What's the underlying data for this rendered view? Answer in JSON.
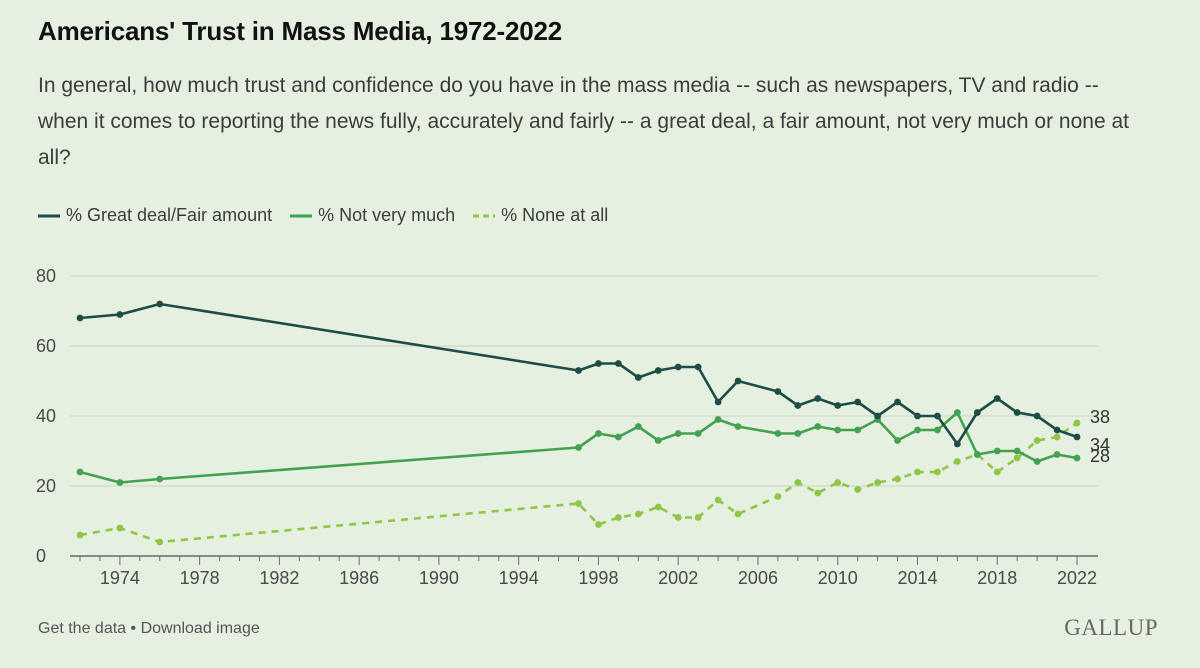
{
  "title": "Americans' Trust in Mass Media, 1972-2022",
  "subtitle": "In general, how much trust and confidence do you have in the mass media -- such as newspapers, TV and radio -- when it comes to reporting the news fully, accurately and fairly -- a great deal, a fair amount, not very much or none at all?",
  "footer": {
    "get_data": "Get the data",
    "separator": " • ",
    "download": "Download image"
  },
  "brand": "GALLUP",
  "colors": {
    "great": "#1e4d47",
    "notvery": "#44a152",
    "none": "#8ec645",
    "grid": "#c9d3c4",
    "axis": "#6b6b6b"
  },
  "chart_data": {
    "type": "line",
    "title": "Americans' Trust in Mass Media, 1972-2022",
    "xlim": [
      1972,
      2022
    ],
    "ylim": [
      0,
      80
    ],
    "x_ticks": [
      1974,
      1978,
      1982,
      1986,
      1990,
      1994,
      1998,
      2002,
      2006,
      2010,
      2014,
      2018,
      2022
    ],
    "y_ticks": [
      0,
      20,
      40,
      60,
      80
    ],
    "legend_position": "top-left",
    "series": [
      {
        "name": "% Great deal/Fair amount",
        "style": "solid",
        "color": "#1e4d47",
        "end_label": "34",
        "points": [
          [
            1972,
            68
          ],
          [
            1974,
            69
          ],
          [
            1976,
            72
          ],
          [
            1997,
            53
          ],
          [
            1998,
            55
          ],
          [
            1999,
            55
          ],
          [
            2000,
            51
          ],
          [
            2001,
            53
          ],
          [
            2002,
            54
          ],
          [
            2003,
            54
          ],
          [
            2004,
            44
          ],
          [
            2005,
            50
          ],
          [
            2007,
            47
          ],
          [
            2008,
            43
          ],
          [
            2009,
            45
          ],
          [
            2010,
            43
          ],
          [
            2011,
            44
          ],
          [
            2012,
            40
          ],
          [
            2013,
            44
          ],
          [
            2014,
            40
          ],
          [
            2015,
            40
          ],
          [
            2016,
            32
          ],
          [
            2017,
            41
          ],
          [
            2018,
            45
          ],
          [
            2019,
            41
          ],
          [
            2020,
            40
          ],
          [
            2021,
            36
          ],
          [
            2022,
            34
          ]
        ]
      },
      {
        "name": "% Not very much",
        "style": "solid",
        "color": "#44a152",
        "end_label": "28",
        "points": [
          [
            1972,
            24
          ],
          [
            1974,
            21
          ],
          [
            1976,
            22
          ],
          [
            1997,
            31
          ],
          [
            1998,
            35
          ],
          [
            1999,
            34
          ],
          [
            2000,
            37
          ],
          [
            2001,
            33
          ],
          [
            2002,
            35
          ],
          [
            2003,
            35
          ],
          [
            2004,
            39
          ],
          [
            2005,
            37
          ],
          [
            2007,
            35
          ],
          [
            2008,
            35
          ],
          [
            2009,
            37
          ],
          [
            2010,
            36
          ],
          [
            2011,
            36
          ],
          [
            2012,
            39
          ],
          [
            2013,
            33
          ],
          [
            2014,
            36
          ],
          [
            2015,
            36
          ],
          [
            2016,
            41
          ],
          [
            2017,
            29
          ],
          [
            2018,
            30
          ],
          [
            2019,
            30
          ],
          [
            2020,
            27
          ],
          [
            2021,
            29
          ],
          [
            2022,
            28
          ]
        ]
      },
      {
        "name": "% None at all",
        "style": "dashed",
        "color": "#8ec645",
        "end_label": "38",
        "points": [
          [
            1972,
            6
          ],
          [
            1974,
            8
          ],
          [
            1976,
            4
          ],
          [
            1997,
            15
          ],
          [
            1998,
            9
          ],
          [
            1999,
            11
          ],
          [
            2000,
            12
          ],
          [
            2001,
            14
          ],
          [
            2002,
            11
          ],
          [
            2003,
            11
          ],
          [
            2004,
            16
          ],
          [
            2005,
            12
          ],
          [
            2007,
            17
          ],
          [
            2008,
            21
          ],
          [
            2009,
            18
          ],
          [
            2010,
            21
          ],
          [
            2011,
            19
          ],
          [
            2012,
            21
          ],
          [
            2013,
            22
          ],
          [
            2014,
            24
          ],
          [
            2015,
            24
          ],
          [
            2016,
            27
          ],
          [
            2017,
            29
          ],
          [
            2018,
            24
          ],
          [
            2019,
            28
          ],
          [
            2020,
            33
          ],
          [
            2021,
            34
          ],
          [
            2022,
            38
          ]
        ]
      }
    ]
  }
}
